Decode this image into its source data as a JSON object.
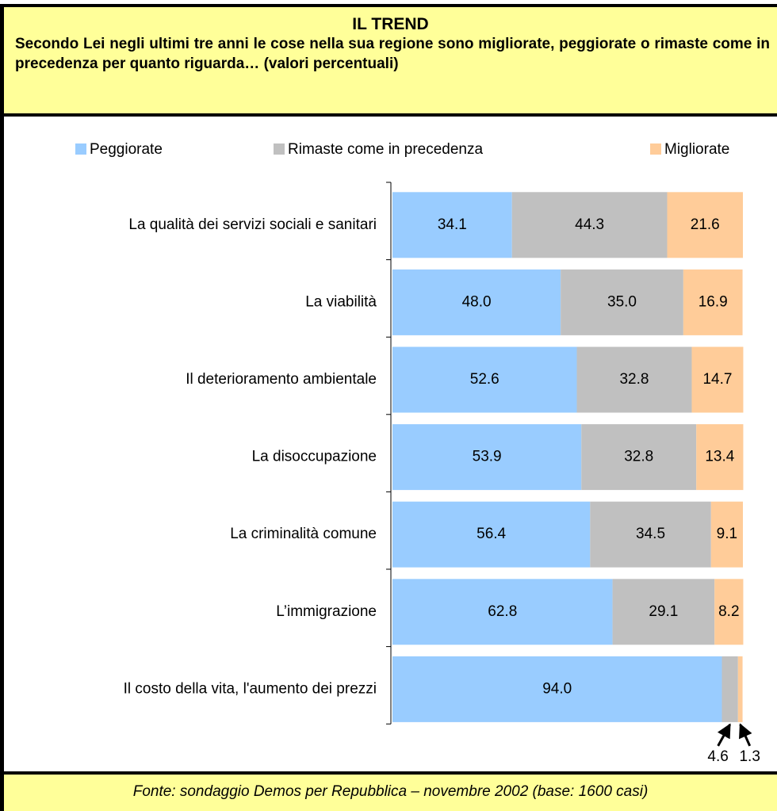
{
  "header": {
    "title": "IL TREND",
    "subtitle": "Secondo Lei negli ultimi tre anni le cose nella sua regione sono migliorate, peggiorate o rimaste come in precedenza per quanto riguarda… (valori percentuali)"
  },
  "chart_data": {
    "type": "stacked_bar_horizontal",
    "categories": [
      "La qualità dei servizi sociali e sanitari",
      "La viabilità",
      "Il deterioramento ambientale",
      "La disoccupazione",
      "La criminalità comune",
      "L’immigrazione",
      "Il costo della vita, l'aumento dei prezzi"
    ],
    "series": [
      {
        "name": "Peggiorate",
        "color": "#99ccff",
        "values": [
          34.1,
          48,
          52.6,
          53.9,
          56.4,
          62.8,
          94
        ],
        "value_labels": [
          "34.1",
          "48.0",
          "52.6",
          "53.9",
          "56.4",
          "62.8",
          "94.0"
        ]
      },
      {
        "name": "Rimaste come in precedenza",
        "color": "#c0c0c0",
        "values": [
          44.3,
          35,
          32.8,
          32.8,
          34.5,
          29.1,
          4.6
        ],
        "value_labels": [
          "44.3",
          "35.0",
          "32.8",
          "32.8",
          "34.5",
          "29.1",
          "4.6"
        ]
      },
      {
        "name": "Migliorate",
        "color": "#ffcc99",
        "values": [
          21.6,
          16.9,
          14.7,
          13.4,
          9.1,
          8.2,
          1.3
        ],
        "value_labels": [
          "21.6",
          "16.9",
          "14.7",
          "13.4",
          "9.1",
          "8.2",
          "1.3"
        ]
      }
    ],
    "xlim": [
      0,
      100
    ],
    "legend": "top"
  },
  "footer": {
    "source": "Fonte: sondaggio Demos per Repubblica – novembre 2002 (base: 1600 casi)"
  }
}
